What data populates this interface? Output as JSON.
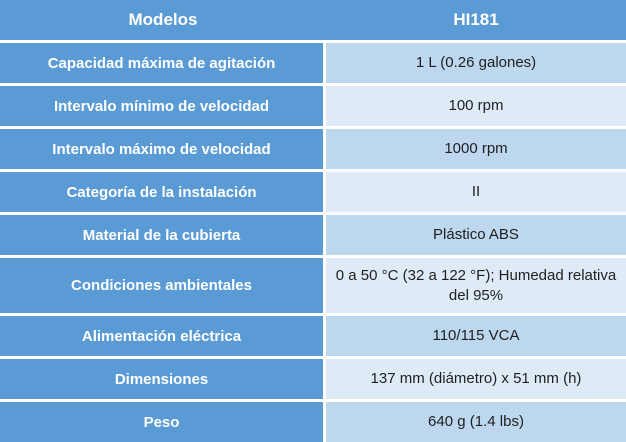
{
  "table": {
    "header": {
      "models_label": "Modelos",
      "model_value": "HI181"
    },
    "rows": [
      {
        "label": "Capacidad máxima de agitación",
        "value": "1 L (0.26 galones)"
      },
      {
        "label": "Intervalo mínimo de velocidad",
        "value": "100 rpm"
      },
      {
        "label": "Intervalo máximo de velocidad",
        "value": "1000 rpm"
      },
      {
        "label": "Categoría de la instalación",
        "value": "II"
      },
      {
        "label": "Material de la cubierta",
        "value": "Plástico ABS"
      },
      {
        "label": "Condiciones ambientales",
        "value": "0 a 50 °C (32 a 122 °F); Humedad relativa del 95%"
      },
      {
        "label": "Alimentación eléctrica",
        "value": "110/115 VCA"
      },
      {
        "label": "Dimensiones",
        "value": "137 mm (diámetro) x 51 mm (h)"
      },
      {
        "label": "Peso",
        "value": "640 g (1.4 lbs)"
      }
    ]
  },
  "colors": {
    "accent_blue": "#5b9bd5",
    "band_light_blue": "#bdd7ee",
    "band_lighter_blue": "#deebf7",
    "grid_line": "#ffffff",
    "header_text": "#ffffff",
    "value_text": "#1f1f1f"
  }
}
